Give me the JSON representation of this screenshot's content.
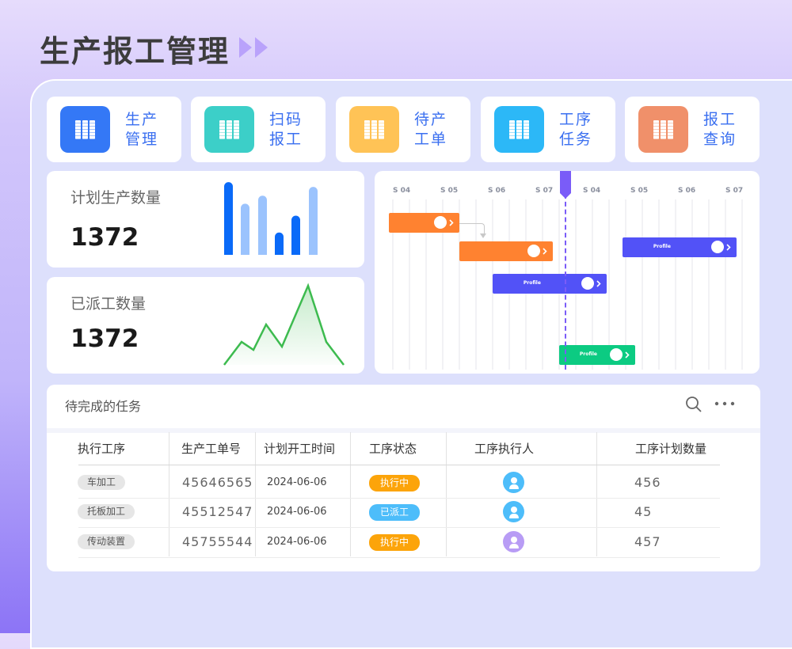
{
  "header": {
    "title": "生产报工管理",
    "icon": "double-play-icon"
  },
  "quick_actions": [
    {
      "label": "生产管理",
      "color": "#3478f6",
      "icon": "binder-icon"
    },
    {
      "label": "扫码报工",
      "color": "#3ccfc8",
      "icon": "binder-icon"
    },
    {
      "label": "待产工单",
      "color": "#ffc356",
      "icon": "binder-icon"
    },
    {
      "label": "工序任务",
      "color": "#2cb8f7",
      "icon": "binder-icon"
    },
    {
      "label": "报工查询",
      "color": "#f0906a",
      "icon": "binder-icon"
    }
  ],
  "stats": [
    {
      "label": "计划生产数量",
      "value": "1372",
      "chart_data": {
        "type": "bar",
        "values": [
          91,
          64,
          74,
          28,
          49,
          85
        ],
        "colors": [
          "#0a6af8",
          "#9bc3fd",
          "#9bc3fd",
          "#0a6af8",
          "#0a6af8",
          "#9bc3fd"
        ]
      }
    },
    {
      "label": "已派工数量",
      "value": "1372",
      "chart_data": {
        "type": "area",
        "values": [
          0,
          29,
          19,
          51,
          23,
          100,
          29,
          0
        ],
        "color": "#3dbb4f"
      }
    }
  ],
  "gantt": {
    "columns": [
      "S 04",
      "S 05",
      "S 06",
      "S 07",
      "S 04",
      "S 05",
      "S 06",
      "S 07"
    ],
    "tasks": [
      {
        "label": "",
        "color": "#ff8230"
      },
      {
        "label": "",
        "color": "#ff8230"
      },
      {
        "label": "Profile",
        "color": "#5252f7"
      },
      {
        "label": "Profile",
        "color": "#5252f7"
      },
      {
        "label": "Profile",
        "color": "#0ccb82"
      }
    ],
    "marker_color": "#7a5cf8"
  },
  "tasks_table": {
    "title": "待完成的任务",
    "headers": [
      "执行工序",
      "生产工单号",
      "计划开工时间",
      "工序状态",
      "工序执行人",
      "工序计划数量"
    ],
    "rows": [
      {
        "process": "车加工",
        "order": "45646565",
        "date": "2024-06-06",
        "status": "执行中",
        "status_color": "#fca40a",
        "avatar_color": "#4dbdfa",
        "qty": "456"
      },
      {
        "process": "托板加工",
        "order": "45512547",
        "date": "2024-06-06",
        "status": "已派工",
        "status_color": "#4dbdfa",
        "avatar_color": "#4dbdfa",
        "qty": "45"
      },
      {
        "process": "传动装置",
        "order": "45755544",
        "date": "2024-06-06",
        "status": "执行中",
        "status_color": "#fca40a",
        "avatar_color": "#b89cf5",
        "qty": "457"
      }
    ]
  }
}
